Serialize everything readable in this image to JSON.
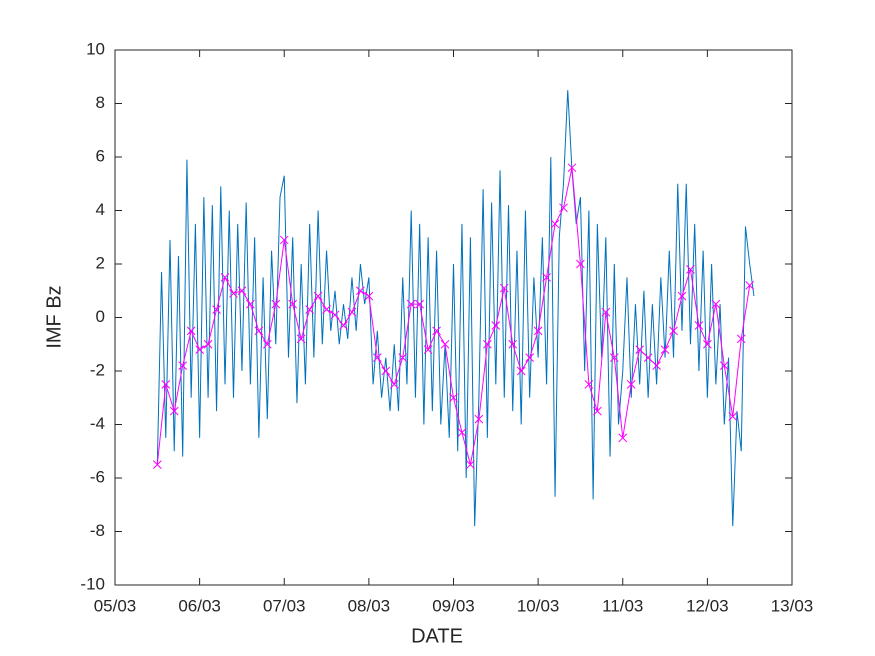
{
  "chart_data": {
    "type": "line",
    "xlabel": "DATE",
    "ylabel": "IMF Bz",
    "xlim": [
      5,
      13
    ],
    "ylim": [
      -10,
      10
    ],
    "xticks": [
      {
        "value": 5,
        "label": "05/03"
      },
      {
        "value": 6,
        "label": "06/03"
      },
      {
        "value": 7,
        "label": "07/03"
      },
      {
        "value": 8,
        "label": "08/03"
      },
      {
        "value": 9,
        "label": "09/03"
      },
      {
        "value": 10,
        "label": "10/03"
      },
      {
        "value": 11,
        "label": "11/03"
      },
      {
        "value": 12,
        "label": "12/03"
      },
      {
        "value": 13,
        "label": "13/03"
      }
    ],
    "yticks": [
      -10,
      -8,
      -6,
      -4,
      -2,
      0,
      2,
      4,
      6,
      8,
      10
    ],
    "grid": false,
    "series": [
      {
        "color": "#0072bd",
        "marker": "none",
        "x": [
          5.5,
          5.55,
          5.6,
          5.65,
          5.7,
          5.75,
          5.8,
          5.85,
          5.9,
          5.95,
          6,
          6.05,
          6.1,
          6.15,
          6.2,
          6.25,
          6.3,
          6.35,
          6.4,
          6.45,
          6.5,
          6.55,
          6.6,
          6.65,
          6.7,
          6.75,
          6.8,
          6.85,
          6.9,
          6.95,
          7,
          7.05,
          7.1,
          7.15,
          7.2,
          7.25,
          7.3,
          7.35,
          7.4,
          7.45,
          7.5,
          7.55,
          7.6,
          7.65,
          7.7,
          7.75,
          7.8,
          7.85,
          7.9,
          7.95,
          8,
          8.05,
          8.1,
          8.15,
          8.2,
          8.25,
          8.3,
          8.35,
          8.4,
          8.45,
          8.5,
          8.55,
          8.6,
          8.65,
          8.7,
          8.75,
          8.8,
          8.85,
          8.9,
          8.95,
          9,
          9.05,
          9.1,
          9.15,
          9.2,
          9.25,
          9.3,
          9.35,
          9.4,
          9.45,
          9.5,
          9.55,
          9.6,
          9.65,
          9.7,
          9.75,
          9.8,
          9.85,
          9.9,
          9.95,
          10,
          10.05,
          10.1,
          10.15,
          10.2,
          10.25,
          10.3,
          10.35,
          10.4,
          10.45,
          10.5,
          10.55,
          10.6,
          10.65,
          10.7,
          10.75,
          10.8,
          10.85,
          10.9,
          10.95,
          11,
          11.05,
          11.1,
          11.15,
          11.2,
          11.25,
          11.3,
          11.35,
          11.4,
          11.45,
          11.5,
          11.55,
          11.6,
          11.65,
          11.7,
          11.75,
          11.8,
          11.85,
          11.9,
          11.95,
          12,
          12.05,
          12.1,
          12.15,
          12.2,
          12.25,
          12.3,
          12.35,
          12.4,
          12.45,
          12.5,
          12.55
        ],
        "values": [
          -5.5,
          1.7,
          -4.5,
          2.9,
          -5.0,
          2.3,
          -5.2,
          5.9,
          -3.0,
          3.5,
          -4.5,
          4.5,
          -3.0,
          4.2,
          -3.5,
          4.9,
          -2.5,
          4.0,
          -3.0,
          3.5,
          -2.0,
          4.3,
          -2.5,
          3.0,
          -4.5,
          1.5,
          -3.8,
          2.5,
          -1.0,
          4.5,
          5.3,
          -1.5,
          3.0,
          -3.2,
          2.0,
          -2.5,
          3.5,
          -1.5,
          4.0,
          -1.0,
          2.5,
          -0.5,
          1.0,
          -1.0,
          0.5,
          -0.8,
          1.5,
          -0.5,
          2.0,
          0.5,
          1.5,
          -2.5,
          -0.5,
          -3.0,
          -1.5,
          -3.5,
          -1.0,
          -3.5,
          1.5,
          -2.5,
          4.0,
          -3.0,
          3.5,
          -4.0,
          3.0,
          -3.5,
          2.5,
          -4.0,
          -1.0,
          -4.5,
          2.0,
          -5.0,
          3.5,
          -6.0,
          3.0,
          -7.8,
          -3.0,
          4.8,
          -4.5,
          4.3,
          -2.5,
          5.5,
          -3.0,
          4.2,
          -3.5,
          2.5,
          -4.0,
          4.0,
          -3.0,
          1.5,
          -1.5,
          3.0,
          -2.5,
          6.0,
          -6.7,
          3.0,
          5.0,
          8.5,
          5.5,
          3.5,
          4.5,
          -2.0,
          4.0,
          -6.8,
          3.5,
          -1.5,
          3.0,
          -5.2,
          2.0,
          -4.0,
          -2.0,
          1.5,
          -3.0,
          0.5,
          -2.5,
          1.0,
          -3.0,
          0.5,
          -2.5,
          1.5,
          -1.5,
          2.5,
          -1.5,
          5.0,
          -0.5,
          5.0,
          -1.0,
          3.5,
          -2.0,
          2.5,
          -3.0,
          2.0,
          -2.5,
          0.5,
          -4.0,
          -1.5,
          -7.8,
          -3.5,
          -5.0,
          3.4,
          2.0,
          0.8
        ]
      },
      {
        "color": "#ff00ff",
        "marker": "x",
        "x": [
          5.5,
          5.6,
          5.7,
          5.8,
          5.9,
          6,
          6.1,
          6.2,
          6.3,
          6.4,
          6.5,
          6.6,
          6.7,
          6.8,
          6.9,
          7,
          7.1,
          7.2,
          7.3,
          7.4,
          7.5,
          7.6,
          7.7,
          7.8,
          7.9,
          8,
          8.1,
          8.2,
          8.3,
          8.4,
          8.5,
          8.6,
          8.7,
          8.8,
          8.9,
          9,
          9.1,
          9.2,
          9.3,
          9.4,
          9.5,
          9.6,
          9.7,
          9.8,
          9.9,
          10,
          10.1,
          10.2,
          10.3,
          10.4,
          10.5,
          10.6,
          10.7,
          10.8,
          10.9,
          11,
          11.1,
          11.2,
          11.3,
          11.4,
          11.5,
          11.6,
          11.7,
          11.8,
          11.9,
          12,
          12.1,
          12.2,
          12.3,
          12.4,
          12.5
        ],
        "values": [
          -5.5,
          -2.5,
          -3.5,
          -1.8,
          -0.5,
          -1.2,
          -1.0,
          0.3,
          1.5,
          0.9,
          1.0,
          0.5,
          -0.5,
          -1.0,
          0.5,
          2.9,
          0.5,
          -0.8,
          0.3,
          0.8,
          0.3,
          0.1,
          -0.3,
          0.2,
          1.0,
          0.8,
          -1.5,
          -2.0,
          -2.5,
          -1.5,
          0.5,
          0.5,
          -1.2,
          -0.5,
          -1.0,
          -3.0,
          -4.3,
          -5.5,
          -3.8,
          -1.0,
          -0.3,
          1.1,
          -1.0,
          -2.0,
          -1.5,
          -0.5,
          1.5,
          3.5,
          4.1,
          5.6,
          2.0,
          -2.5,
          -3.5,
          0.2,
          -1.5,
          -4.5,
          -2.5,
          -1.2,
          -1.5,
          -1.8,
          -1.2,
          -0.5,
          0.8,
          1.8,
          -0.3,
          -1.0,
          0.5,
          -1.8,
          -3.7,
          -0.8,
          1.2
        ]
      }
    ]
  }
}
